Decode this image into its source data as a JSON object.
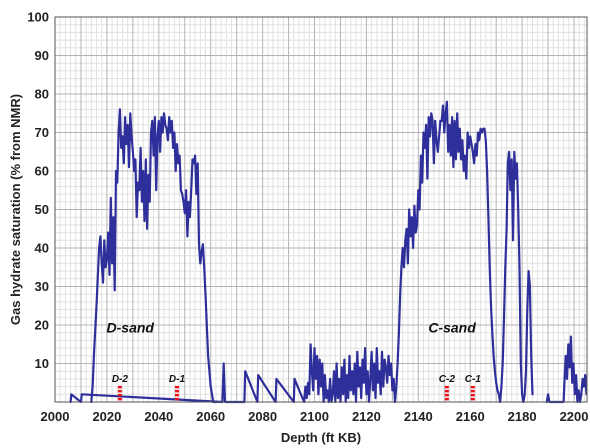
{
  "chart_data": {
    "type": "line",
    "title": "",
    "xlabel": "Depth (ft KB)",
    "ylabel": "Gas hydrate saturation (% from NMR)",
    "xlim": [
      2000,
      2205
    ],
    "ylim": [
      0,
      100
    ],
    "xticks": [
      2000,
      2020,
      2040,
      2060,
      2080,
      2100,
      2120,
      2140,
      2160,
      2180,
      2200
    ],
    "yticks": [
      10,
      20,
      30,
      40,
      50,
      60,
      70,
      80,
      90,
      100
    ],
    "grid": true,
    "line_color": "#2e2f9b",
    "marker_color": "#e8141a",
    "series": [
      {
        "x": [
          2014.0,
          2014.5,
          2015.0,
          2016.0,
          2017.0,
          2017.5,
          2018.0,
          2018.5,
          2019.0,
          2019.5,
          2020.0,
          2020.5,
          2021.0,
          2021.5,
          2022.0,
          2022.5,
          2023.0,
          2023.5,
          2024.0,
          2024.5,
          2025.0,
          2025.5,
          2026.0,
          2026.5,
          2027.0,
          2027.5,
          2028.0,
          2028.5,
          2029.0,
          2029.5,
          2030.0,
          2030.5,
          2031.0,
          2031.5,
          2032.0,
          2032.5,
          2033.0,
          2033.5,
          2034.0,
          2034.5,
          2035.0,
          2035.5,
          2036.0,
          2036.5,
          2037.0,
          2037.5,
          2038.0,
          2038.5,
          2039.0,
          2039.5,
          2040.0,
          2040.5,
          2041.0,
          2041.5,
          2042.0,
          2042.5,
          2043.0,
          2043.5,
          2044.0,
          2044.5,
          2045.0,
          2045.5,
          2046.0,
          2046.5,
          2047.0,
          2047.5,
          2048.0,
          2048.5,
          2049.0,
          2049.5,
          2050.0,
          2050.5,
          2051.0,
          2051.5,
          2052.0,
          2052.5,
          2053.0,
          2053.5,
          2054.0,
          2054.5,
          2055.0,
          2055.5,
          2056.0,
          2056.5,
          2057.0,
          2057.5,
          2058.0,
          2058.5,
          2059.0,
          2059.5,
          2060.0,
          2060.5,
          2061.0,
          2061.5,
          2062.0,
          2062.5
        ],
        "y": [
          0,
          4,
          12,
          25,
          40,
          43,
          36,
          31,
          42,
          35,
          37,
          44,
          33,
          53,
          36,
          48,
          29,
          60,
          57,
          70,
          76,
          66,
          69,
          62,
          74,
          67,
          72,
          61,
          75,
          69,
          65,
          60,
          63,
          48,
          57,
          55,
          66,
          52,
          60,
          47,
          63,
          45,
          59,
          52,
          70,
          73,
          64,
          74,
          55,
          69,
          73,
          65,
          74,
          70,
          75,
          72,
          71,
          68,
          74,
          70,
          73,
          66,
          70,
          60,
          67,
          62,
          64,
          55,
          54,
          52,
          49,
          55,
          43,
          52,
          48,
          55,
          63,
          62,
          64,
          54,
          62,
          41,
          36,
          39,
          41,
          35,
          28,
          20,
          12,
          8,
          4,
          2,
          0,
          0,
          0,
          0
        ]
      },
      {
        "x": [
          2131.0,
          2131.5,
          2132.0,
          2132.5,
          2133.0,
          2133.5,
          2134.0,
          2134.5,
          2135.0,
          2135.5,
          2136.0,
          2136.5,
          2137.0,
          2137.5,
          2138.0,
          2138.5,
          2139.0,
          2139.5,
          2140.0,
          2140.5,
          2141.0,
          2141.5,
          2142.0,
          2142.5,
          2143.0,
          2143.5,
          2144.0,
          2144.5,
          2145.0,
          2145.5,
          2146.0,
          2146.5,
          2147.0,
          2147.5,
          2148.0,
          2148.5,
          2149.0,
          2149.5,
          2150.0,
          2150.5,
          2151.0,
          2151.5,
          2152.0,
          2152.5,
          2153.0,
          2153.5,
          2154.0,
          2154.5,
          2155.0,
          2155.5,
          2156.0,
          2156.5,
          2157.0,
          2157.5,
          2158.0,
          2158.5,
          2159.0,
          2159.5,
          2160.0,
          2160.5,
          2161.0,
          2161.5,
          2162.0,
          2162.5,
          2163.0,
          2163.5,
          2164.0,
          2164.5,
          2165.0,
          2165.5,
          2166.0,
          2166.5,
          2167.0,
          2167.5,
          2168.0,
          2168.5,
          2169.0,
          2169.5,
          2170.0,
          2170.5,
          2171.0,
          2171.5,
          2172.0,
          2172.5,
          2173.0,
          2173.5,
          2174.0,
          2174.5,
          2175.0,
          2175.5,
          2176.0,
          2176.5,
          2177.0,
          2177.5,
          2178.0,
          2178.5,
          2179.0,
          2179.5,
          2180.0,
          2180.5,
          2181.0,
          2181.5,
          2182.0,
          2182.5,
          2183.0,
          2183.5,
          2184.0
        ],
        "y": [
          0,
          4,
          10,
          18,
          28,
          35,
          40,
          35,
          42,
          45,
          36,
          50,
          43,
          48,
          40,
          51,
          44,
          46,
          55,
          50,
          64,
          57,
          70,
          66,
          72,
          58,
          74,
          69,
          75,
          73,
          62,
          73,
          68,
          65,
          69,
          73,
          73,
          77,
          70,
          75,
          78,
          65,
          72,
          64,
          74,
          61,
          73,
          63,
          75,
          65,
          71,
          63,
          68,
          60,
          64,
          58,
          70,
          66,
          69,
          67,
          65,
          62,
          67,
          64,
          70,
          68,
          71,
          70,
          71,
          71,
          68,
          60,
          48,
          35,
          25,
          18,
          12,
          8,
          5,
          3,
          2,
          0,
          4,
          10,
          22,
          35,
          45,
          62,
          65,
          55,
          63,
          42,
          65,
          58,
          62,
          50,
          35,
          10,
          2,
          0,
          2,
          8,
          24,
          34,
          30,
          12,
          2
        ]
      },
      {
        "x": [
          2006.0,
          2006.3,
          2010.0,
          2010.3,
          2064.5,
          2065.0,
          2065.5,
          2073.0,
          2073.3,
          2078.0,
          2078.3,
          2085.0,
          2085.3,
          2092.0,
          2092.3,
          2096.0,
          2096.5,
          2097.0,
          2097.5,
          2098.0,
          2098.5,
          2099.0,
          2099.5,
          2100.0,
          2100.5,
          2101.0,
          2101.5,
          2102.0,
          2102.5,
          2103.0,
          2103.5,
          2104.0,
          2104.5,
          2105.0,
          2105.5,
          2106.0,
          2106.5,
          2107.0,
          2107.5,
          2108.0,
          2108.5,
          2109.0,
          2109.5,
          2110.0,
          2110.5,
          2111.0,
          2111.5,
          2112.0,
          2112.5,
          2113.0,
          2113.5,
          2114.0,
          2114.5,
          2115.0,
          2115.5,
          2116.0,
          2116.5,
          2117.0,
          2117.5,
          2118.0,
          2118.5,
          2119.0,
          2119.5,
          2120.0,
          2120.5,
          2121.0,
          2121.5,
          2122.0,
          2122.5,
          2123.0,
          2123.5,
          2124.0,
          2124.5,
          2125.0,
          2125.5,
          2126.0,
          2126.5,
          2127.0,
          2127.5,
          2128.0,
          2128.5,
          2129.0,
          2129.5,
          2130.0,
          2130.5,
          2131.0
        ],
        "y": [
          0,
          2,
          0,
          2,
          0,
          10,
          0,
          0,
          8,
          0,
          7,
          0,
          6,
          0,
          6,
          0,
          4,
          1,
          5,
          2,
          15,
          8,
          3,
          14,
          6,
          12,
          2,
          11,
          4,
          10,
          0,
          7,
          1,
          3,
          0,
          6,
          0,
          2,
          8,
          0,
          10,
          1,
          6,
          0,
          9,
          2,
          11,
          0,
          7,
          1,
          12,
          3,
          8,
          2,
          10,
          0,
          13,
          4,
          9,
          1,
          11,
          5,
          14,
          2,
          8,
          0,
          6,
          13,
          3,
          10,
          1,
          14,
          5,
          8,
          2,
          13,
          4,
          11,
          9,
          5,
          12,
          7,
          10,
          3,
          6,
          0
        ]
      },
      {
        "x": [
          2189.5,
          2190.0,
          2190.5,
          2191.0,
          2196.0,
          2196.3,
          2196.8,
          2197.3,
          2197.8,
          2198.3,
          2198.8,
          2199.3,
          2199.8,
          2200.3,
          2200.8,
          2201.3,
          2201.8,
          2202.3,
          2202.8,
          2203.3,
          2203.8,
          2204.3,
          2204.8
        ],
        "y": [
          0,
          2,
          0,
          0,
          0,
          5,
          12,
          6,
          15,
          9,
          17,
          5,
          10,
          2,
          7,
          0,
          3,
          0,
          2,
          6,
          4,
          7,
          2
        ]
      }
    ],
    "annotations": [
      {
        "text": "D-sand",
        "x": 2029,
        "y": 18
      },
      {
        "text": "C-sand",
        "x": 2153,
        "y": 18
      }
    ],
    "sample_markers": [
      {
        "label": "D-2",
        "x": 2025
      },
      {
        "label": "D-1",
        "x": 2047
      },
      {
        "label": "C-2",
        "x": 2151
      },
      {
        "label": "C-1",
        "x": 2161
      }
    ]
  }
}
